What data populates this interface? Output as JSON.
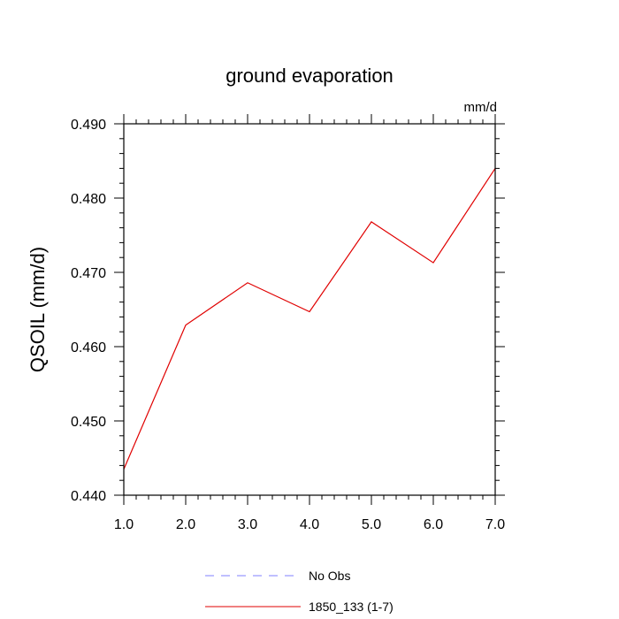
{
  "chart_data": {
    "type": "line",
    "title": "ground evaporation",
    "units_label": "mm/d",
    "xlabel": "",
    "ylabel": "QSOIL  (mm/d)",
    "xlim": [
      1.0,
      7.0
    ],
    "ylim": [
      0.44,
      0.49
    ],
    "x_ticks": [
      1.0,
      2.0,
      3.0,
      4.0,
      5.0,
      6.0,
      7.0
    ],
    "x_tick_labels": [
      "1.0",
      "2.0",
      "3.0",
      "4.0",
      "5.0",
      "6.0",
      "7.0"
    ],
    "y_ticks": [
      0.44,
      0.45,
      0.46,
      0.47,
      0.48,
      0.49
    ],
    "y_tick_labels": [
      "0.440",
      "0.450",
      "0.460",
      "0.470",
      "0.480",
      "0.490"
    ],
    "grid": false,
    "legend_position": "bottom",
    "series": [
      {
        "name": "No Obs",
        "color": "#8080ff",
        "dash": "dashed",
        "x": [],
        "values": []
      },
      {
        "name": "1850_133 (1-7)",
        "color": "#e00000",
        "dash": "solid",
        "x": [
          1.0,
          2.0,
          3.0,
          4.0,
          5.0,
          6.0,
          7.0
        ],
        "values": [
          0.4435,
          0.4629,
          0.4686,
          0.4647,
          0.4768,
          0.4713,
          0.484
        ]
      }
    ]
  }
}
